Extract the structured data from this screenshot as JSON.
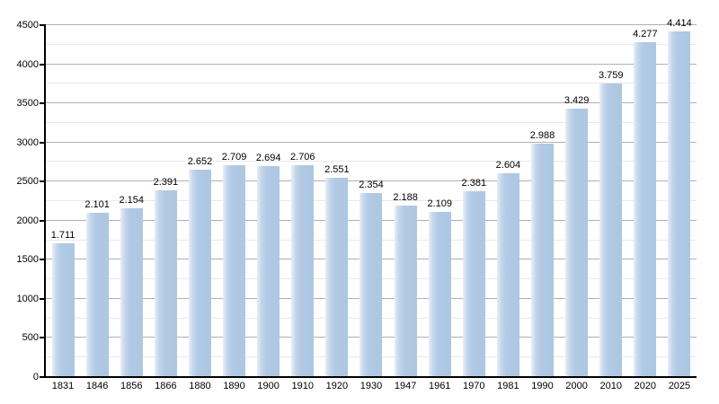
{
  "chart_data": {
    "type": "bar",
    "title": "",
    "xlabel": "",
    "ylabel": "",
    "categories": [
      "1831",
      "1846",
      "1856",
      "1866",
      "1880",
      "1890",
      "1900",
      "1910",
      "1920",
      "1930",
      "1947",
      "1961",
      "1970",
      "1981",
      "1990",
      "2000",
      "2010",
      "2020",
      "2025"
    ],
    "values": [
      1711,
      2101,
      2154,
      2391,
      2652,
      2709,
      2694,
      2706,
      2551,
      2354,
      2188,
      2109,
      2381,
      2604,
      2988,
      3429,
      3759,
      4277,
      4414
    ],
    "value_labels": [
      "1.711",
      "2.101",
      "2.154",
      "2.391",
      "2.652",
      "2.709",
      "2.694",
      "2.706",
      "2.551",
      "2.354",
      "2.188",
      "2.109",
      "2.381",
      "2.604",
      "2.988",
      "3.429",
      "3.759",
      "4.277",
      "4.414"
    ],
    "ylim": [
      0,
      4500
    ],
    "y_tick_step": 500,
    "y_minor_step": 250,
    "y_tick_labels": [
      "0",
      "500",
      "1000",
      "1500",
      "2000",
      "2500",
      "3000",
      "3500",
      "4000",
      "4500"
    ],
    "grid": true,
    "legend": false,
    "colors": {
      "bar_fill": "#b0c9e4",
      "bar_edge_highlight": "#e7eef7",
      "major_gridline": "#b0b0b0",
      "minor_gridline": "#e9e9e9",
      "axis": "#000000",
      "text": "#000000",
      "background": "#ffffff"
    }
  }
}
